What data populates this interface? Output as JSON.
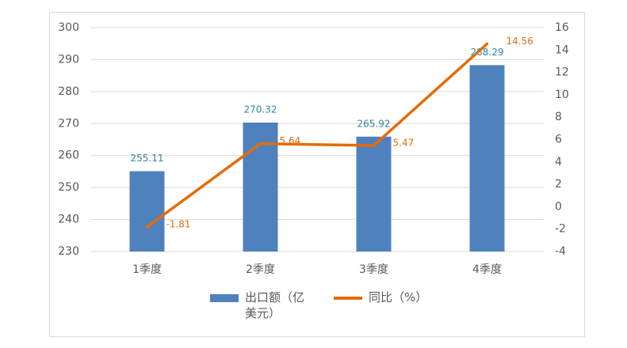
{
  "chart_data": {
    "type": "bar",
    "categories": [
      "1季度",
      "2季度",
      "3季度",
      "4季度"
    ],
    "series": [
      {
        "name": "出口额（亿美元）",
        "type": "bar",
        "color": "#4f81bd",
        "label_color": "#31859c",
        "values": [
          255.11,
          270.32,
          265.92,
          288.29
        ]
      },
      {
        "name": "同比（%）",
        "type": "line",
        "axis": "y2",
        "color": "#e36c0a",
        "label_color": "#e36c0a",
        "values": [
          -1.81,
          5.64,
          5.47,
          14.56
        ]
      }
    ],
    "ylim": [
      230,
      300
    ],
    "yticks": [
      230,
      240,
      250,
      260,
      270,
      280,
      290,
      300
    ],
    "y2lim": [
      -4,
      16
    ],
    "y2ticks": [
      -4,
      -2,
      0,
      2,
      4,
      6,
      8,
      10,
      12,
      14,
      16
    ],
    "grid": true,
    "legend": "bottom"
  }
}
